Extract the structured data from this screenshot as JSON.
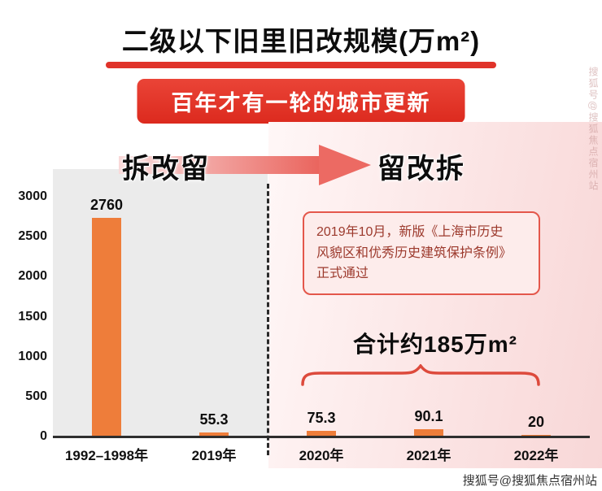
{
  "page": {
    "title": "二级以下旧里旧改规模(万m²)",
    "banner": "百年才有一轮的城市更新",
    "era_left": "拆改留",
    "era_right": "留改拆",
    "total_label": "合计约185万m²",
    "watermark": "搜狐号@搜狐焦点宿州站",
    "annotation_lines": [
      "2019年10月，新版《上海市历史",
      "风貌区和优秀历史建筑保护条例》",
      "正式通过"
    ]
  },
  "chart_data": {
    "type": "bar",
    "title": "二级以下旧里旧改规模(万m²)",
    "categories": [
      "1992–1998年",
      "2019年",
      "2020年",
      "2021年",
      "2022年"
    ],
    "values": [
      2760,
      55.3,
      75.3,
      90.1,
      20
    ],
    "value_labels": [
      "2760",
      "55.3",
      "75.3",
      "90.1",
      "20"
    ],
    "xlabel": "",
    "ylabel": "",
    "ylim": [
      0,
      3000
    ],
    "yticks": [
      0,
      500,
      1000,
      1500,
      2000,
      2500,
      3000
    ],
    "grid": false,
    "legend": "none",
    "bar_color": "#ee7d3a",
    "annotation": "2019年10月，新版《上海市历史风貌区和优秀历史建筑建筑保护条例》正式通过",
    "total_annotation": "合计约185万m²",
    "divider": "dashed line between 2019年 and 2020年"
  },
  "colors": {
    "accent_red": "#e0332a",
    "banner_red": "#dc2a1e",
    "bar_orange": "#ee7d3a",
    "annotation_border": "#e4574b",
    "annotation_text": "#9c392c"
  }
}
